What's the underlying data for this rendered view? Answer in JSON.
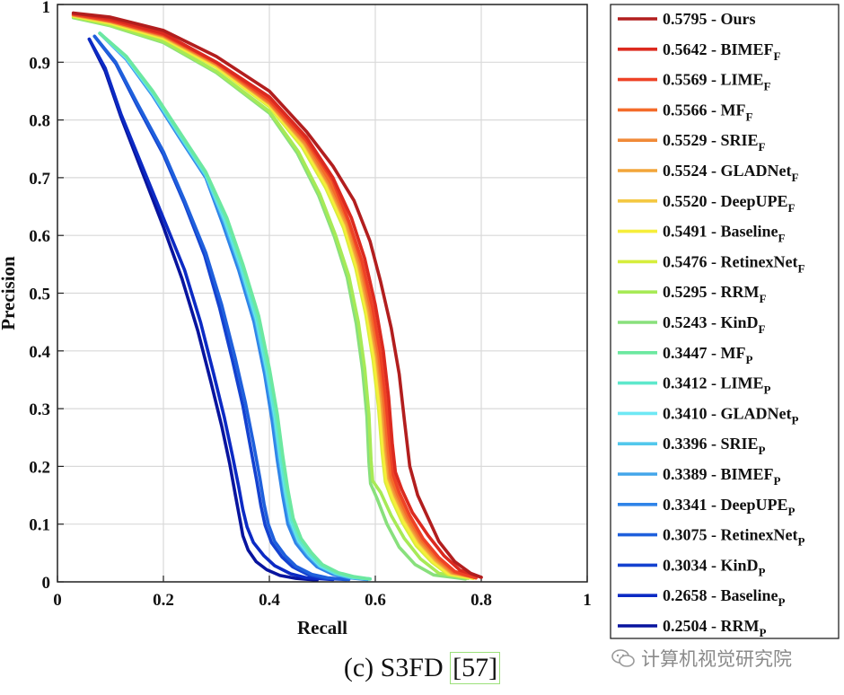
{
  "chart_data": {
    "type": "line",
    "title": "",
    "xlabel": "Recall",
    "ylabel": "Precision",
    "xlim": [
      0,
      1
    ],
    "ylim": [
      0,
      1
    ],
    "xticks": [
      "0",
      "0.2",
      "0.4",
      "0.6",
      "0.8",
      "1"
    ],
    "yticks": [
      "0",
      "0.1",
      "0.2",
      "0.3",
      "0.4",
      "0.5",
      "0.6",
      "0.7",
      "0.8",
      "0.9",
      "1"
    ],
    "grid": true,
    "legend_position": "right, outside",
    "series": [
      {
        "label": "0.5795 - Ours",
        "base": "0.5795 - Ours",
        "sub": "",
        "color": "#b21e1e",
        "x": [
          0.03,
          0.1,
          0.2,
          0.3,
          0.4,
          0.47,
          0.52,
          0.56,
          0.59,
          0.61,
          0.63,
          0.645,
          0.655,
          0.665,
          0.68,
          0.7,
          0.72,
          0.75,
          0.78,
          0.8
        ],
        "y": [
          0.985,
          0.978,
          0.955,
          0.91,
          0.85,
          0.78,
          0.72,
          0.66,
          0.59,
          0.52,
          0.44,
          0.36,
          0.28,
          0.2,
          0.15,
          0.11,
          0.07,
          0.035,
          0.015,
          0.008
        ]
      },
      {
        "label": "0.5642 - BIMEF_F",
        "base": "0.5642 - BIMEF",
        "sub": "F",
        "color": "#dc2a1f",
        "x": [
          0.03,
          0.1,
          0.2,
          0.3,
          0.4,
          0.47,
          0.52,
          0.555,
          0.58,
          0.6,
          0.615,
          0.625,
          0.632,
          0.638,
          0.65,
          0.67,
          0.7,
          0.73,
          0.76,
          0.8
        ],
        "y": [
          0.985,
          0.975,
          0.95,
          0.9,
          0.84,
          0.77,
          0.7,
          0.63,
          0.56,
          0.48,
          0.4,
          0.32,
          0.24,
          0.19,
          0.16,
          0.12,
          0.08,
          0.045,
          0.02,
          0.008
        ]
      },
      {
        "label": "0.5569 - LIME_F",
        "base": "0.5569 - LIME",
        "sub": "F",
        "color": "#ee4226",
        "x": [
          0.03,
          0.1,
          0.2,
          0.3,
          0.4,
          0.47,
          0.52,
          0.55,
          0.575,
          0.595,
          0.61,
          0.62,
          0.628,
          0.634,
          0.645,
          0.665,
          0.69,
          0.72,
          0.75,
          0.79
        ],
        "y": [
          0.983,
          0.972,
          0.948,
          0.9,
          0.835,
          0.765,
          0.695,
          0.625,
          0.555,
          0.475,
          0.395,
          0.315,
          0.235,
          0.185,
          0.155,
          0.115,
          0.075,
          0.042,
          0.018,
          0.007
        ]
      },
      {
        "label": "0.5566 - MF_F",
        "base": "0.5566 - MF",
        "sub": "F",
        "color": "#f46b2a",
        "x": [
          0.03,
          0.1,
          0.2,
          0.3,
          0.4,
          0.47,
          0.515,
          0.55,
          0.573,
          0.592,
          0.607,
          0.617,
          0.624,
          0.63,
          0.642,
          0.662,
          0.688,
          0.718,
          0.748,
          0.79
        ],
        "y": [
          0.983,
          0.972,
          0.947,
          0.898,
          0.832,
          0.762,
          0.692,
          0.622,
          0.552,
          0.472,
          0.392,
          0.312,
          0.232,
          0.182,
          0.152,
          0.112,
          0.072,
          0.04,
          0.017,
          0.007
        ]
      },
      {
        "label": "0.5529 - SRIE_F",
        "base": "0.5529 - SRIE",
        "sub": "F",
        "color": "#f08a38",
        "x": [
          0.03,
          0.1,
          0.2,
          0.3,
          0.4,
          0.468,
          0.513,
          0.548,
          0.571,
          0.59,
          0.605,
          0.615,
          0.622,
          0.628,
          0.64,
          0.66,
          0.686,
          0.716,
          0.746,
          0.79
        ],
        "y": [
          0.982,
          0.971,
          0.946,
          0.897,
          0.83,
          0.76,
          0.69,
          0.62,
          0.55,
          0.47,
          0.39,
          0.31,
          0.23,
          0.18,
          0.15,
          0.11,
          0.07,
          0.039,
          0.016,
          0.007
        ]
      },
      {
        "label": "0.5524 - GLADNet_F",
        "base": "0.5524 - GLADNet",
        "sub": "F",
        "color": "#f2a53a",
        "x": [
          0.03,
          0.1,
          0.2,
          0.3,
          0.4,
          0.467,
          0.512,
          0.546,
          0.569,
          0.588,
          0.603,
          0.613,
          0.62,
          0.626,
          0.638,
          0.658,
          0.684,
          0.714,
          0.744,
          0.79
        ],
        "y": [
          0.982,
          0.97,
          0.945,
          0.896,
          0.829,
          0.759,
          0.689,
          0.619,
          0.549,
          0.469,
          0.389,
          0.309,
          0.229,
          0.179,
          0.149,
          0.109,
          0.069,
          0.038,
          0.016,
          0.007
        ]
      },
      {
        "label": "0.5520 - DeepUPE_F",
        "base": "0.5520 - DeepUPE",
        "sub": "F",
        "color": "#f4c842",
        "x": [
          0.03,
          0.1,
          0.2,
          0.3,
          0.4,
          0.466,
          0.511,
          0.545,
          0.568,
          0.587,
          0.602,
          0.612,
          0.619,
          0.625,
          0.637,
          0.657,
          0.683,
          0.713,
          0.743,
          0.79
        ],
        "y": [
          0.981,
          0.97,
          0.944,
          0.895,
          0.828,
          0.758,
          0.688,
          0.618,
          0.548,
          0.468,
          0.388,
          0.308,
          0.228,
          0.178,
          0.148,
          0.108,
          0.068,
          0.037,
          0.015,
          0.007
        ]
      },
      {
        "label": "0.5491 - Baseline_F",
        "base": "0.5491 - Baseline",
        "sub": "F",
        "color": "#f6ee3a",
        "x": [
          0.03,
          0.1,
          0.2,
          0.3,
          0.4,
          0.464,
          0.508,
          0.542,
          0.565,
          0.584,
          0.598,
          0.608,
          0.615,
          0.621,
          0.633,
          0.653,
          0.679,
          0.709,
          0.739,
          0.785
        ],
        "y": [
          0.98,
          0.968,
          0.942,
          0.892,
          0.825,
          0.755,
          0.685,
          0.615,
          0.545,
          0.465,
          0.385,
          0.305,
          0.225,
          0.175,
          0.145,
          0.105,
          0.065,
          0.035,
          0.014,
          0.006
        ]
      },
      {
        "label": "0.5476 - RetinexNet_F",
        "base": "0.5476 - RetinexNet",
        "sub": "F",
        "color": "#d6ee3c",
        "x": [
          0.03,
          0.1,
          0.2,
          0.3,
          0.4,
          0.462,
          0.506,
          0.54,
          0.563,
          0.582,
          0.596,
          0.606,
          0.613,
          0.619,
          0.631,
          0.651,
          0.677,
          0.707,
          0.737,
          0.785
        ],
        "y": [
          0.98,
          0.967,
          0.941,
          0.891,
          0.823,
          0.753,
          0.683,
          0.613,
          0.543,
          0.463,
          0.383,
          0.303,
          0.223,
          0.173,
          0.143,
          0.103,
          0.063,
          0.034,
          0.013,
          0.006
        ]
      },
      {
        "label": "0.5295 - RRM_F",
        "base": "0.5295 - RRM",
        "sub": "F",
        "color": "#a7ea56",
        "x": [
          0.03,
          0.1,
          0.2,
          0.3,
          0.4,
          0.455,
          0.495,
          0.525,
          0.55,
          0.568,
          0.58,
          0.588,
          0.592,
          0.595,
          0.61,
          0.63,
          0.655,
          0.685,
          0.72,
          0.775
        ],
        "y": [
          0.978,
          0.964,
          0.936,
          0.884,
          0.815,
          0.745,
          0.672,
          0.6,
          0.53,
          0.45,
          0.37,
          0.29,
          0.21,
          0.175,
          0.155,
          0.115,
          0.075,
          0.04,
          0.015,
          0.006
        ]
      },
      {
        "label": "0.5243 - KinD_F",
        "base": "0.5243 - KinD",
        "sub": "F",
        "color": "#88e07c",
        "x": [
          0.03,
          0.1,
          0.2,
          0.3,
          0.4,
          0.453,
          0.493,
          0.523,
          0.547,
          0.564,
          0.576,
          0.584,
          0.588,
          0.591,
          0.603,
          0.622,
          0.645,
          0.675,
          0.71,
          0.77
        ],
        "y": [
          0.977,
          0.963,
          0.934,
          0.882,
          0.812,
          0.742,
          0.669,
          0.597,
          0.527,
          0.447,
          0.367,
          0.287,
          0.207,
          0.17,
          0.145,
          0.1,
          0.06,
          0.03,
          0.012,
          0.005
        ]
      },
      {
        "label": "0.3447 - MF_P",
        "base": "0.3447 - MF",
        "sub": "P",
        "color": "#6ce8a0",
        "x": [
          0.08,
          0.13,
          0.18,
          0.23,
          0.28,
          0.32,
          0.35,
          0.38,
          0.4,
          0.415,
          0.425,
          0.435,
          0.445,
          0.46,
          0.48,
          0.5,
          0.53,
          0.56,
          0.59
        ],
        "y": [
          0.95,
          0.91,
          0.85,
          0.78,
          0.71,
          0.63,
          0.55,
          0.46,
          0.37,
          0.29,
          0.22,
          0.16,
          0.11,
          0.075,
          0.05,
          0.03,
          0.016,
          0.009,
          0.005
        ]
      },
      {
        "label": "0.3412 - LIME_P",
        "base": "0.3412 - LIME",
        "sub": "P",
        "color": "#5ee8cc",
        "x": [
          0.08,
          0.13,
          0.18,
          0.23,
          0.28,
          0.318,
          0.348,
          0.377,
          0.397,
          0.412,
          0.422,
          0.432,
          0.442,
          0.457,
          0.477,
          0.497,
          0.527,
          0.557,
          0.59
        ],
        "y": [
          0.95,
          0.91,
          0.848,
          0.777,
          0.707,
          0.627,
          0.547,
          0.457,
          0.367,
          0.287,
          0.217,
          0.157,
          0.107,
          0.072,
          0.048,
          0.029,
          0.015,
          0.008,
          0.005
        ]
      },
      {
        "label": "0.3410 - GLADNet_P",
        "base": "0.3410 - GLADNet",
        "sub": "P",
        "color": "#6ee8f4",
        "x": [
          0.08,
          0.13,
          0.18,
          0.23,
          0.28,
          0.317,
          0.347,
          0.376,
          0.396,
          0.411,
          0.421,
          0.431,
          0.441,
          0.456,
          0.476,
          0.496,
          0.526,
          0.556,
          0.59
        ],
        "y": [
          0.95,
          0.908,
          0.847,
          0.776,
          0.706,
          0.626,
          0.546,
          0.456,
          0.366,
          0.286,
          0.216,
          0.156,
          0.106,
          0.071,
          0.047,
          0.028,
          0.015,
          0.008,
          0.005
        ]
      },
      {
        "label": "0.3396 - SRIE_P",
        "base": "0.3396 - SRIE",
        "sub": "P",
        "color": "#52c8ec",
        "x": [
          0.08,
          0.13,
          0.18,
          0.23,
          0.28,
          0.316,
          0.346,
          0.375,
          0.395,
          0.41,
          0.42,
          0.43,
          0.44,
          0.455,
          0.475,
          0.495,
          0.525,
          0.555,
          0.59
        ],
        "y": [
          0.95,
          0.907,
          0.845,
          0.774,
          0.704,
          0.624,
          0.544,
          0.454,
          0.364,
          0.284,
          0.214,
          0.154,
          0.104,
          0.07,
          0.046,
          0.028,
          0.014,
          0.008,
          0.005
        ]
      },
      {
        "label": "0.3389 - BIMEF_P",
        "base": "0.3389 - BIMEF",
        "sub": "P",
        "color": "#44a6ea",
        "x": [
          0.08,
          0.13,
          0.18,
          0.23,
          0.28,
          0.315,
          0.345,
          0.374,
          0.394,
          0.409,
          0.419,
          0.429,
          0.439,
          0.454,
          0.474,
          0.494,
          0.524,
          0.554,
          0.59
        ],
        "y": [
          0.95,
          0.906,
          0.844,
          0.773,
          0.703,
          0.623,
          0.543,
          0.453,
          0.363,
          0.283,
          0.213,
          0.153,
          0.103,
          0.069,
          0.045,
          0.027,
          0.014,
          0.007,
          0.005
        ]
      },
      {
        "label": "0.3341 - DeepUPE_P",
        "base": "0.3341 - DeepUPE",
        "sub": "P",
        "color": "#2f84e8",
        "x": [
          0.08,
          0.13,
          0.18,
          0.23,
          0.28,
          0.312,
          0.342,
          0.371,
          0.391,
          0.405,
          0.415,
          0.425,
          0.435,
          0.45,
          0.47,
          0.49,
          0.52,
          0.55,
          0.585
        ],
        "y": [
          0.95,
          0.905,
          0.842,
          0.77,
          0.7,
          0.62,
          0.54,
          0.45,
          0.36,
          0.28,
          0.21,
          0.15,
          0.1,
          0.067,
          0.044,
          0.026,
          0.013,
          0.007,
          0.004
        ]
      },
      {
        "label": "0.3075 - RetinexNet_P",
        "base": "0.3075 - RetinexNet",
        "sub": "P",
        "color": "#1f60dc",
        "x": [
          0.07,
          0.11,
          0.15,
          0.2,
          0.24,
          0.28,
          0.31,
          0.335,
          0.355,
          0.37,
          0.382,
          0.39,
          0.398,
          0.41,
          0.43,
          0.45,
          0.48,
          0.51,
          0.55
        ],
        "y": [
          0.945,
          0.9,
          0.83,
          0.745,
          0.66,
          0.57,
          0.48,
          0.39,
          0.31,
          0.24,
          0.18,
          0.135,
          0.1,
          0.07,
          0.045,
          0.027,
          0.013,
          0.007,
          0.004
        ]
      },
      {
        "label": "0.3034 - KinD_P",
        "base": "0.3034 - KinD",
        "sub": "P",
        "color": "#1442d0",
        "x": [
          0.07,
          0.11,
          0.15,
          0.2,
          0.24,
          0.278,
          0.306,
          0.33,
          0.35,
          0.364,
          0.376,
          0.384,
          0.392,
          0.404,
          0.424,
          0.444,
          0.474,
          0.504,
          0.545
        ],
        "y": [
          0.945,
          0.898,
          0.826,
          0.74,
          0.655,
          0.565,
          0.475,
          0.385,
          0.305,
          0.235,
          0.176,
          0.132,
          0.098,
          0.068,
          0.043,
          0.026,
          0.012,
          0.006,
          0.004
        ]
      },
      {
        "label": "0.2658 - Baseline_P",
        "base": "0.2658 - Baseline",
        "sub": "P",
        "color": "#0c2ac4",
        "x": [
          0.06,
          0.09,
          0.12,
          0.16,
          0.2,
          0.24,
          0.27,
          0.295,
          0.315,
          0.33,
          0.342,
          0.35,
          0.358,
          0.37,
          0.39,
          0.41,
          0.44,
          0.47,
          0.52
        ],
        "y": [
          0.94,
          0.89,
          0.81,
          0.72,
          0.63,
          0.54,
          0.45,
          0.36,
          0.285,
          0.22,
          0.165,
          0.125,
          0.095,
          0.068,
          0.045,
          0.028,
          0.014,
          0.007,
          0.004
        ]
      },
      {
        "label": "0.2504 - RRM_P",
        "base": "0.2504 - RRM",
        "sub": "P",
        "color": "#08149e",
        "x": [
          0.06,
          0.09,
          0.12,
          0.16,
          0.2,
          0.235,
          0.265,
          0.29,
          0.31,
          0.325,
          0.336,
          0.344,
          0.35,
          0.36,
          0.375,
          0.395,
          0.42,
          0.45,
          0.49
        ],
        "y": [
          0.94,
          0.885,
          0.805,
          0.71,
          0.615,
          0.525,
          0.435,
          0.345,
          0.27,
          0.205,
          0.15,
          0.11,
          0.08,
          0.055,
          0.035,
          0.021,
          0.011,
          0.006,
          0.003
        ]
      }
    ]
  },
  "caption": {
    "text": "(c) S3FD ",
    "citation": "[57]"
  },
  "watermark": {
    "text": "计算机视觉研究院",
    "icon": "wechat-icon"
  }
}
